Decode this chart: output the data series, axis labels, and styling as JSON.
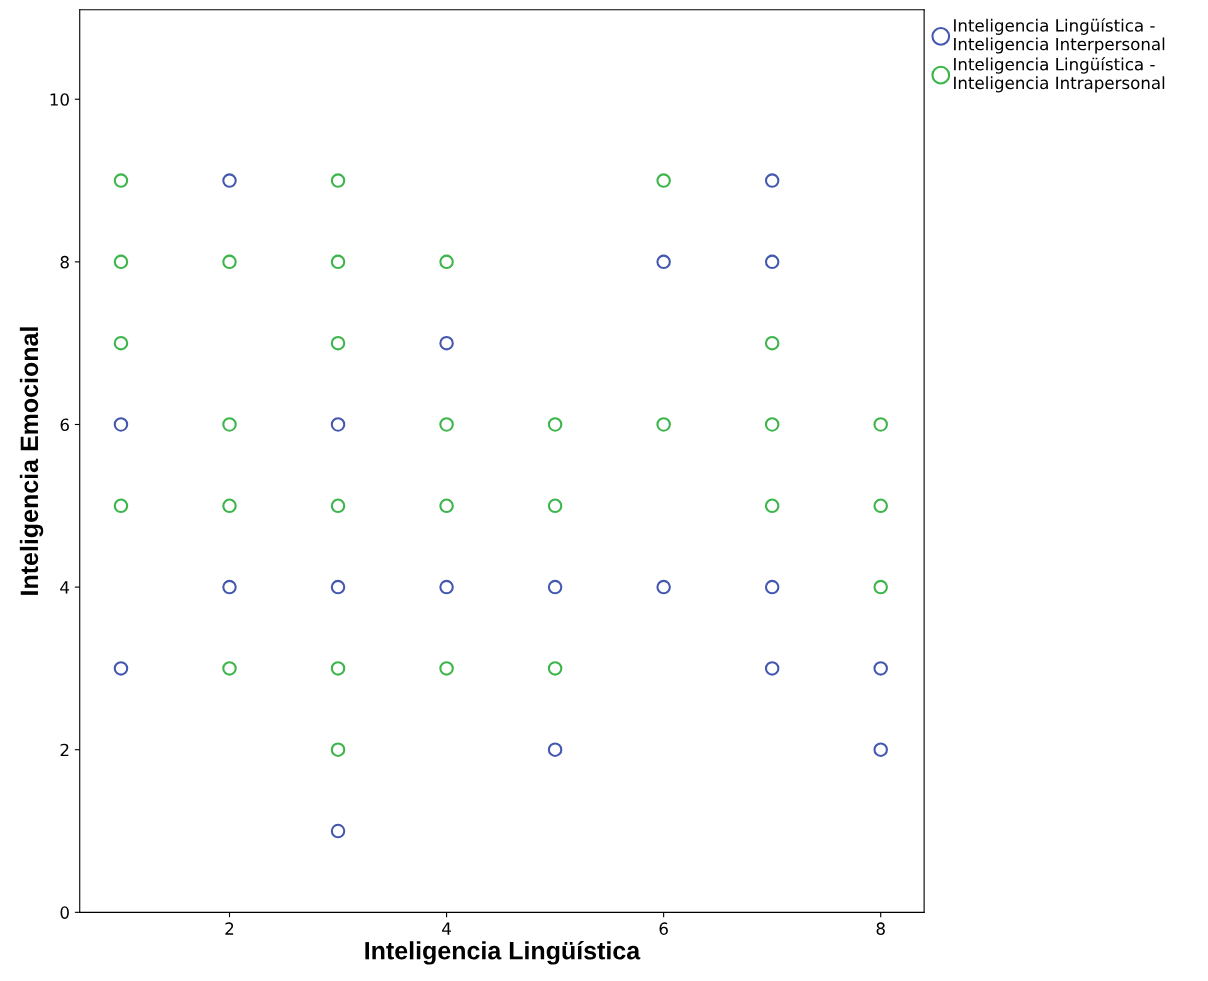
{
  "chart_data": {
    "type": "scatter",
    "xlabel": "Inteligencia Lingüística",
    "ylabel": "Inteligencia Emocional",
    "xlim": [
      0.62,
      8.4
    ],
    "ylim": [
      0,
      11.1
    ],
    "xticks": [
      2,
      4,
      6,
      8
    ],
    "yticks": [
      0,
      2,
      4,
      6,
      8,
      10
    ],
    "grid": false,
    "legend": "top right",
    "marker": "circle",
    "series": [
      {
        "name": "Inteligencia Lingüística -\nInteligencia Interpersonal",
        "color": "#4458b0",
        "x": [
          2,
          1,
          3,
          4,
          2,
          3,
          4,
          1,
          3,
          6,
          7,
          7,
          5,
          6,
          7,
          5,
          8,
          7,
          8
        ],
        "values": [
          9,
          6,
          6,
          7,
          4,
          4,
          4,
          3,
          1,
          8,
          9,
          8,
          4,
          4,
          4,
          2,
          3,
          3,
          2
        ]
      },
      {
        "name": "Inteligencia Lingüística -\nInteligencia Intrapersonal",
        "color": "#3cb54a",
        "x": [
          1,
          3,
          1,
          2,
          3,
          4,
          1,
          3,
          2,
          4,
          1,
          2,
          3,
          4,
          2,
          3,
          4,
          3,
          6,
          7,
          5,
          6,
          7,
          8,
          5,
          7,
          8,
          8,
          5
        ],
        "values": [
          9,
          9,
          8,
          8,
          8,
          8,
          7,
          7,
          6,
          6,
          5,
          5,
          5,
          5,
          3,
          3,
          3,
          2,
          9,
          7,
          6,
          6,
          6,
          6,
          5,
          5,
          5,
          4,
          3
        ]
      }
    ]
  }
}
